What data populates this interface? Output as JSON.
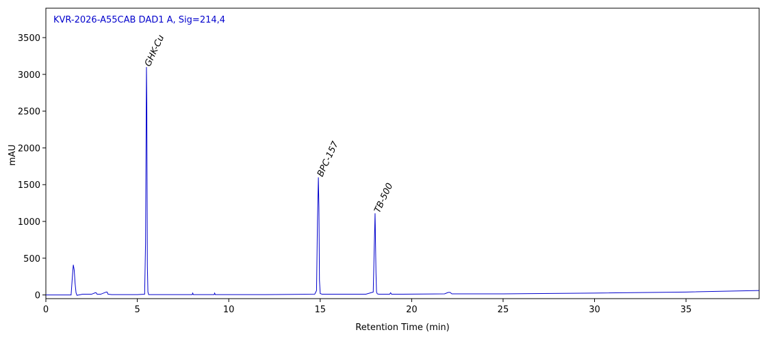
{
  "chart_data": {
    "type": "line",
    "title": "KVR-2026-A55CAB DAD1 A, Sig=214,4",
    "xlabel": "Retention Time (min)",
    "ylabel": "mAU",
    "xlim": [
      0,
      39
    ],
    "ylim": [
      -50,
      3900
    ],
    "xticks": [
      0,
      5,
      10,
      15,
      20,
      25,
      30,
      35
    ],
    "yticks": [
      0,
      500,
      1000,
      1500,
      2000,
      2500,
      3000,
      3500
    ],
    "grid": false,
    "colors": {
      "trace": "#0000cc",
      "title": "#0000cc",
      "axes": "#000000"
    },
    "series": [
      {
        "x": [
          0,
          1.3,
          1.38,
          1.45,
          1.5,
          1.55,
          1.6,
          1.65,
          1.7,
          1.8,
          1.9,
          2.0,
          2.2,
          2.5,
          2.7,
          2.75,
          2.8,
          3.0,
          3.3,
          3.35,
          3.4,
          3.6,
          5.0,
          5.4,
          5.45,
          5.5,
          5.52,
          5.55,
          5.58,
          5.62,
          5.7,
          6.0,
          8.0,
          8.03,
          8.06,
          9.2,
          9.23,
          9.26,
          12.0,
          14.7,
          14.8,
          14.85,
          14.9,
          14.93,
          14.96,
          15.0,
          15.1,
          15.5,
          17.5,
          17.9,
          17.95,
          18.0,
          18.05,
          18.08,
          18.12,
          18.2,
          18.5,
          18.8,
          18.85,
          18.9,
          19.5,
          21.8,
          22.0,
          22.1,
          22.2,
          25.0,
          30.0,
          35.0,
          39.0
        ],
        "y": [
          0,
          0,
          0,
          250,
          410,
          340,
          150,
          30,
          -5,
          0,
          5,
          10,
          10,
          10,
          30,
          30,
          10,
          10,
          40,
          40,
          10,
          5,
          5,
          10,
          700,
          3100,
          2600,
          400,
          40,
          5,
          5,
          5,
          5,
          25,
          5,
          5,
          25,
          5,
          5,
          10,
          60,
          1000,
          1600,
          1200,
          200,
          20,
          10,
          10,
          10,
          40,
          600,
          1110,
          300,
          40,
          15,
          10,
          10,
          10,
          30,
          10,
          10,
          15,
          35,
          35,
          15,
          15,
          25,
          40,
          60
        ]
      }
    ],
    "annotations": [
      {
        "text": "GHK-Cu",
        "x": 5.5,
        "y": 3100
      },
      {
        "text": "BPC-157",
        "x": 14.93,
        "y": 1600
      },
      {
        "text": "TB-500",
        "x": 18.05,
        "y": 1110
      }
    ]
  }
}
